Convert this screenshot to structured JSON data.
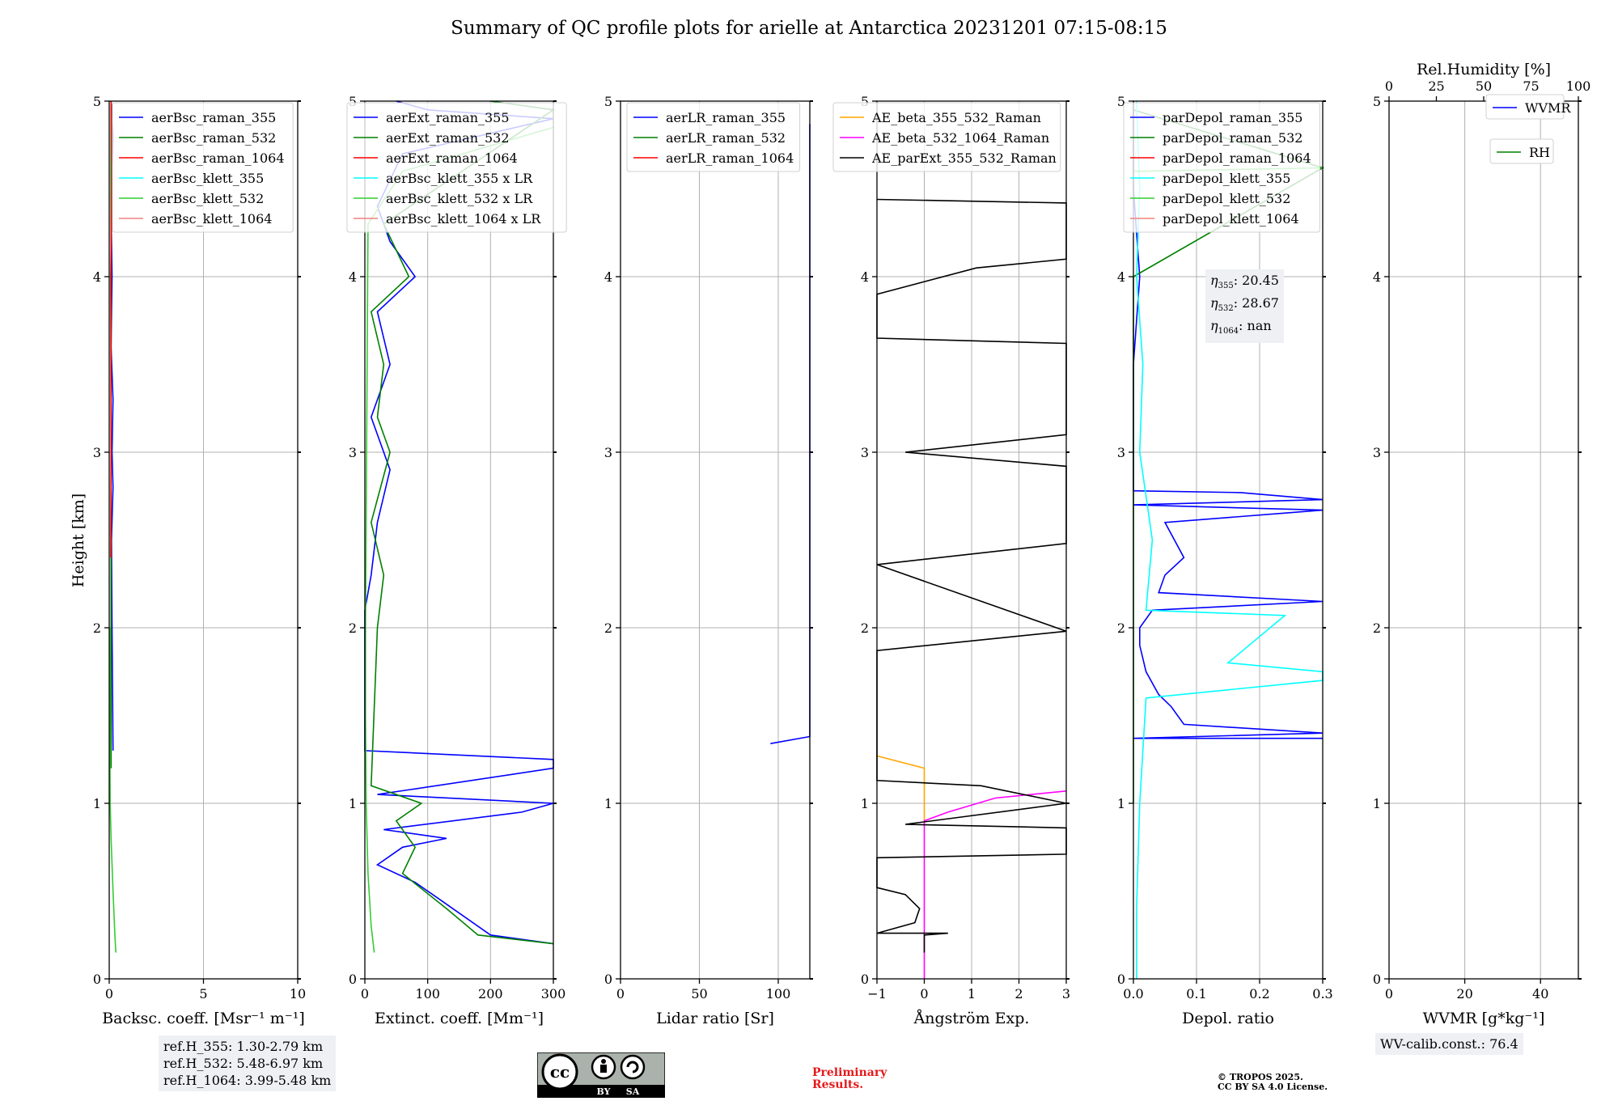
{
  "title": "Summary of QC profile plots for arielle at Antarctica 20231201 07:15-08:15",
  "shared_ylabel": "Height [km]",
  "chart_data": [
    {
      "type": "line",
      "xlabel": "Backsc. coeff. [Msr⁻¹ m⁻¹]",
      "ylabel": "Height [km]",
      "xlim": [
        0,
        10
      ],
      "ylim": [
        0,
        5
      ],
      "xticks": [
        0,
        5,
        10
      ],
      "yticks": [
        0,
        1,
        2,
        3,
        4,
        5
      ],
      "grid": true,
      "legend_position": "top-right",
      "series": [
        {
          "name": "aerBsc_raman_355",
          "color": "#0000ff",
          "points": [
            [
              0.2,
              1.3
            ],
            [
              0.18,
              1.6
            ],
            [
              0.15,
              2.0
            ],
            [
              0.12,
              2.5
            ],
            [
              0.2,
              2.8
            ],
            [
              0.15,
              3.0
            ],
            [
              0.2,
              3.3
            ],
            [
              0.1,
              3.6
            ],
            [
              0.15,
              4.0
            ],
            [
              0.1,
              4.4
            ],
            [
              0.2,
              4.8
            ],
            [
              0.1,
              5.0
            ]
          ]
        },
        {
          "name": "aerBsc_raman_532",
          "color": "#008000",
          "points": [
            [
              0.1,
              1.2
            ],
            [
              0.1,
              2.0
            ],
            [
              0.1,
              3.0
            ],
            [
              0.1,
              4.0
            ],
            [
              0.1,
              5.0
            ]
          ]
        },
        {
          "name": "aerBsc_raman_1064",
          "color": "#ff0000",
          "points": [
            [
              0.08,
              2.4
            ],
            [
              0.1,
              3.0
            ],
            [
              0.08,
              4.0
            ],
            [
              0.15,
              4.6
            ],
            [
              0.1,
              5.0
            ]
          ]
        },
        {
          "name": "aerBsc_klett_355",
          "color": "#00ffff",
          "points": []
        },
        {
          "name": "aerBsc_klett_532",
          "color": "#32cd32",
          "points": [
            [
              0.35,
              0.15
            ],
            [
              0.3,
              0.25
            ],
            [
              0.2,
              0.5
            ],
            [
              0.1,
              0.8
            ],
            [
              0.05,
              1.0
            ],
            [
              0.03,
              1.5
            ],
            [
              0.02,
              2.0
            ]
          ]
        },
        {
          "name": "aerBsc_klett_1064",
          "color": "#f08080",
          "points": []
        }
      ]
    },
    {
      "type": "line",
      "xlabel": "Extinct. coeff. [Mm⁻¹]",
      "xlim": [
        0,
        300
      ],
      "ylim": [
        0,
        5
      ],
      "xticks": [
        0,
        100,
        200,
        300
      ],
      "yticks": [
        0,
        1,
        2,
        3,
        4,
        5
      ],
      "grid": true,
      "legend_position": "top-right",
      "series": [
        {
          "name": "aerExt_raman_355",
          "color": "#0000ff",
          "points": [
            [
              300,
              0.2
            ],
            [
              200,
              0.25
            ],
            [
              140,
              0.4
            ],
            [
              120,
              0.45
            ],
            [
              80,
              0.55
            ],
            [
              20,
              0.65
            ],
            [
              60,
              0.75
            ],
            [
              130,
              0.8
            ],
            [
              30,
              0.85
            ],
            [
              250,
              0.95
            ],
            [
              300,
              1.0
            ],
            [
              20,
              1.05
            ],
            [
              300,
              1.2
            ],
            [
              300,
              1.25
            ],
            [
              0,
              1.3
            ],
            [
              0,
              2.1
            ],
            [
              10,
              2.3
            ],
            [
              20,
              2.6
            ],
            [
              40,
              2.9
            ],
            [
              10,
              3.2
            ],
            [
              40,
              3.5
            ],
            [
              20,
              3.8
            ],
            [
              80,
              4.0
            ],
            [
              40,
              4.2
            ],
            [
              20,
              4.4
            ],
            [
              60,
              4.7
            ],
            [
              300,
              4.9
            ],
            [
              100,
              4.95
            ],
            [
              50,
              5.0
            ]
          ]
        },
        {
          "name": "aerExt_raman_532",
          "color": "#008000",
          "points": [
            [
              300,
              0.2
            ],
            [
              180,
              0.25
            ],
            [
              130,
              0.4
            ],
            [
              60,
              0.6
            ],
            [
              80,
              0.75
            ],
            [
              50,
              0.9
            ],
            [
              90,
              1.0
            ],
            [
              10,
              1.1
            ],
            [
              20,
              2.0
            ],
            [
              30,
              2.3
            ],
            [
              10,
              2.6
            ],
            [
              40,
              3.0
            ],
            [
              20,
              3.2
            ],
            [
              30,
              3.5
            ],
            [
              10,
              3.8
            ],
            [
              70,
              4.0
            ],
            [
              30,
              4.3
            ],
            [
              300,
              4.95
            ],
            [
              200,
              5.0
            ]
          ]
        },
        {
          "name": "aerExt_raman_1064",
          "color": "#ff0000",
          "points": []
        },
        {
          "name": "aerBsc_klett_355 x LR",
          "color": "#00ffff",
          "points": []
        },
        {
          "name": "aerBsc_klett_532 x LR",
          "color": "#32cd32",
          "points": [
            [
              15,
              0.15
            ],
            [
              10,
              0.3
            ],
            [
              5,
              0.6
            ],
            [
              2,
              1.0
            ],
            [
              1,
              1.5
            ],
            [
              1,
              2.0
            ],
            [
              5,
              4.3
            ],
            [
              60,
              4.6
            ],
            [
              300,
              4.85
            ]
          ]
        },
        {
          "name": "aerBsc_klett_1064 x LR",
          "color": "#f08080",
          "points": []
        }
      ]
    },
    {
      "type": "line",
      "xlabel": "Lidar ratio [Sr]",
      "xlim": [
        0,
        120
      ],
      "ylim": [
        0,
        5
      ],
      "xticks": [
        0,
        50,
        100
      ],
      "yticks": [
        0,
        1,
        2,
        3,
        4,
        5
      ],
      "grid": true,
      "legend_position": "top-right",
      "series": [
        {
          "name": "aerLR_raman_355",
          "color": "#0000ff",
          "points": [
            [
              95,
              1.34
            ],
            [
              120,
              1.38
            ],
            [
              120,
              1.67
            ],
            [
              120,
              1.71
            ],
            [
              120,
              2.1
            ],
            [
              120,
              2.13
            ],
            [
              120,
              2.5
            ],
            [
              120,
              2.56
            ],
            [
              120,
              2.6
            ],
            [
              120,
              2.69
            ],
            [
              120,
              3.27
            ],
            [
              120,
              3.33
            ],
            [
              120,
              3.43
            ],
            [
              120,
              3.5
            ],
            [
              120,
              3.64
            ],
            [
              120,
              3.74
            ],
            [
              120,
              3.84
            ],
            [
              120,
              4.1
            ],
            [
              120,
              4.2
            ],
            [
              120,
              4.47
            ],
            [
              120,
              4.6
            ],
            [
              120,
              4.7
            ],
            [
              120,
              4.75
            ],
            [
              120,
              4.87
            ]
          ]
        },
        {
          "name": "aerLR_raman_532",
          "color": "#008000",
          "points": []
        },
        {
          "name": "aerLR_raman_1064",
          "color": "#ff0000",
          "points": []
        }
      ]
    },
    {
      "type": "line",
      "xlabel": "Ångström Exp.",
      "xlim": [
        -1,
        3
      ],
      "ylim": [
        0,
        5
      ],
      "xticks": [
        -1,
        0,
        1,
        2,
        3
      ],
      "yticks": [
        0,
        1,
        2,
        3,
        4,
        5
      ],
      "grid": true,
      "legend_position": "top-left",
      "series": [
        {
          "name": "AE_beta_355_532_Raman",
          "color": "#ffa500",
          "points": [
            [
              -1,
              1.27
            ],
            [
              0,
              1.2
            ],
            [
              0,
              0.9
            ]
          ]
        },
        {
          "name": "AE_beta_532_1064_Raman",
          "color": "#ff00ff",
          "points": [
            [
              0,
              0.0
            ],
            [
              0,
              0.9
            ],
            [
              0.5,
              0.95
            ],
            [
              1.5,
              1.03
            ],
            [
              3,
              1.07
            ]
          ]
        },
        {
          "name": "AE_parExt_355_532_Raman",
          "color": "#000000",
          "points": [
            [
              0,
              0.15
            ],
            [
              0,
              0.25
            ],
            [
              0.5,
              0.26
            ],
            [
              -1,
              0.26
            ],
            [
              -0.2,
              0.32
            ],
            [
              -0.1,
              0.4
            ],
            [
              -0.4,
              0.48
            ],
            [
              -1,
              0.52
            ],
            [
              -1,
              0.69
            ],
            [
              3,
              0.71
            ],
            [
              3,
              0.86
            ],
            [
              -0.4,
              0.88
            ],
            [
              3,
              1.0
            ],
            [
              1.2,
              1.1
            ],
            [
              -1,
              1.13
            ],
            [
              -1,
              1.87
            ],
            [
              3,
              1.98
            ],
            [
              -1,
              2.36
            ],
            [
              3,
              2.48
            ],
            [
              3,
              2.92
            ],
            [
              -0.4,
              3.0
            ],
            [
              3,
              3.1
            ],
            [
              3,
              3.62
            ],
            [
              -1,
              3.65
            ],
            [
              -1,
              3.9
            ],
            [
              1.1,
              4.05
            ],
            [
              3,
              4.1
            ],
            [
              3,
              4.42
            ],
            [
              -1,
              4.44
            ]
          ]
        }
      ]
    },
    {
      "type": "line",
      "xlabel": "Depol. ratio",
      "xlim": [
        0,
        0.3
      ],
      "ylim": [
        0,
        5
      ],
      "xticks": [
        0.0,
        0.1,
        0.2,
        0.3
      ],
      "xtick_labels": [
        "0.0",
        "0.1",
        "0.2",
        "0.3"
      ],
      "yticks": [
        0,
        1,
        2,
        3,
        4,
        5
      ],
      "grid": true,
      "legend_position": "top-left",
      "series": [
        {
          "name": "parDepol_raman_355",
          "color": "#0000ff",
          "points": [
            [
              0.3,
              1.37
            ],
            [
              0.0,
              1.37
            ],
            [
              0.3,
              1.4
            ],
            [
              0.08,
              1.45
            ],
            [
              0.06,
              1.55
            ],
            [
              0.04,
              1.62
            ],
            [
              0.02,
              1.75
            ],
            [
              0.01,
              1.9
            ],
            [
              0.01,
              2.0
            ],
            [
              0.03,
              2.1
            ],
            [
              0.3,
              2.15
            ],
            [
              0.04,
              2.2
            ],
            [
              0.05,
              2.3
            ],
            [
              0.08,
              2.4
            ],
            [
              0.05,
              2.6
            ],
            [
              0.3,
              2.67
            ],
            [
              0.0,
              2.7
            ],
            [
              0.3,
              2.73
            ],
            [
              0.17,
              2.77
            ],
            [
              0.0,
              2.78
            ],
            [
              0.0,
              3.5
            ],
            [
              0.01,
              4.0
            ],
            [
              0.0,
              4.5
            ],
            [
              0.0,
              5.0
            ]
          ]
        },
        {
          "name": "parDepol_raman_532",
          "color": "#008000",
          "points": [
            [
              0.0,
              1.0
            ],
            [
              0.0,
              2.0
            ],
            [
              0.0,
              3.0
            ],
            [
              0.0,
              4.0
            ],
            [
              0.3,
              4.62
            ],
            [
              0.0,
              4.95
            ]
          ]
        },
        {
          "name": "parDepol_raman_1064",
          "color": "#ff0000",
          "points": []
        },
        {
          "name": "parDepol_klett_355",
          "color": "#00ffff",
          "points": [
            [
              0.005,
              0.0
            ],
            [
              0.005,
              0.4
            ],
            [
              0.01,
              1.0
            ],
            [
              0.02,
              1.6
            ],
            [
              0.3,
              1.7
            ],
            [
              0.3,
              1.75
            ],
            [
              0.15,
              1.8
            ],
            [
              0.24,
              2.07
            ],
            [
              0.02,
              2.1
            ],
            [
              0.03,
              2.5
            ],
            [
              0.01,
              3.0
            ],
            [
              0.015,
              3.5
            ],
            [
              0.005,
              4.0
            ],
            [
              0.01,
              4.5
            ],
            [
              0.005,
              5.0
            ]
          ]
        },
        {
          "name": "parDepol_klett_532",
          "color": "#32cd32",
          "points": [
            [
              0.0,
              4.6
            ],
            [
              0.3,
              4.62
            ]
          ]
        },
        {
          "name": "parDepol_klett_1064",
          "color": "#f08080",
          "points": []
        }
      ]
    },
    {
      "type": "line",
      "xlabel": "WVMR [g*kg⁻¹]",
      "xlabel_top": "Rel.Humidity [%]",
      "xlim": [
        0,
        50
      ],
      "xlim_top": [
        0,
        100
      ],
      "ylim": [
        0,
        5
      ],
      "xticks": [
        0,
        20,
        40
      ],
      "xticks_top": [
        0,
        25,
        50,
        75,
        100
      ],
      "yticks": [
        0,
        1,
        2,
        3,
        4,
        5
      ],
      "grid": true,
      "legend_position": "top-right",
      "series": [
        {
          "name": "WVMR",
          "color": "#0000ff",
          "points": []
        },
        {
          "name": "RH",
          "color": "#008000",
          "points": []
        }
      ]
    }
  ],
  "info": {
    "ref_h_355": "ref.H_355: 1.30-2.79 km",
    "ref_h_532": "ref.H_532: 5.48-6.97 km",
    "ref_h_1064": "ref.H_1064: 3.99-5.48 km",
    "eta_355_label": "η",
    "eta_355_sub": "355",
    "eta_355_value": ": 20.45",
    "eta_532_sub": "532",
    "eta_532_value": ": 28.67",
    "eta_1064_sub": "1064",
    "eta_1064_value": ": nan",
    "wv_calib": "WV-calib.const.: 76.4"
  },
  "footer": {
    "preliminary_line1": "Preliminary",
    "preliminary_line2": "Results.",
    "copyright_line1": "© TROPOS 2025.",
    "copyright_line2": "CC BY SA 4.0 License.",
    "cc_badge_text": "cc",
    "cc_by": "BY",
    "cc_sa": "SA"
  }
}
